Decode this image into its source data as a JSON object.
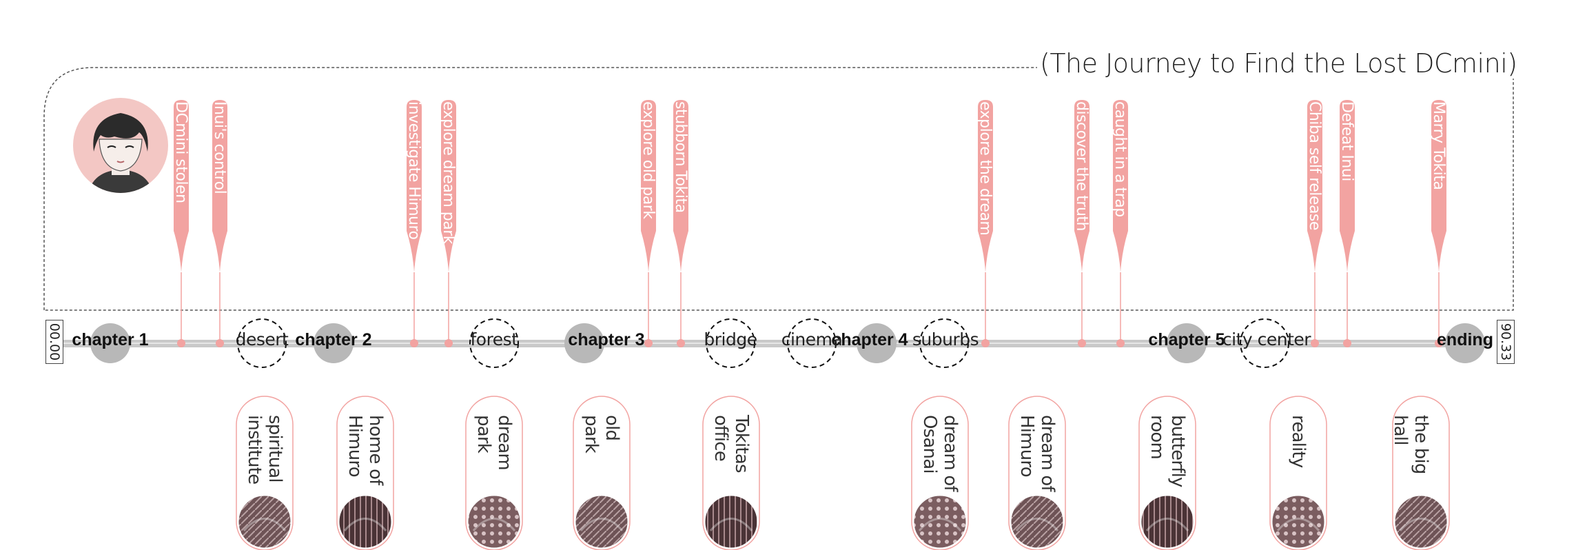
{
  "title": "(The Journey to Find the Lost DCmini)",
  "timeline": {
    "start_label": "00.00",
    "end_label": "90.33",
    "colors": {
      "accent": "#f2a3a1",
      "marker": "#b8b8b8",
      "rail": "#c9c9c9",
      "frame": "#555555"
    }
  },
  "chapters": [
    {
      "label": "chapter 1"
    },
    {
      "label": "chapter 2"
    },
    {
      "label": "chapter 3"
    },
    {
      "label": "chapter 4"
    },
    {
      "label": "chapter 5"
    },
    {
      "label": "ending"
    }
  ],
  "locations": [
    {
      "label": "desert"
    },
    {
      "label": "forest"
    },
    {
      "label": "bridge"
    },
    {
      "label": "cinema"
    },
    {
      "label": "suburbs"
    },
    {
      "label": "city center"
    }
  ],
  "events": [
    {
      "label": "DCmini stolen"
    },
    {
      "label": "Inui's control"
    },
    {
      "label": "investigate Himuro"
    },
    {
      "label": "explore dream park"
    },
    {
      "label": "explore old park"
    },
    {
      "label": "stubborn Tokita"
    },
    {
      "label": "explore the dream"
    },
    {
      "label": "discover the truth"
    },
    {
      "label": "caught in a trap"
    },
    {
      "label": "Chiba self release"
    },
    {
      "label": "Defeat Inui"
    },
    {
      "label": "Marry Tokita"
    }
  ],
  "places": [
    {
      "lines": [
        "spiritual",
        "institute"
      ],
      "icon": "spiritual-institute-thumbnail"
    },
    {
      "lines": [
        "home of",
        "Himuro"
      ],
      "icon": "himuro-home-thumbnail"
    },
    {
      "lines": [
        "dream",
        "park"
      ],
      "icon": "dream-park-thumbnail"
    },
    {
      "lines": [
        "old",
        "park"
      ],
      "icon": "old-park-thumbnail"
    },
    {
      "lines": [
        "Tokitas",
        "office"
      ],
      "icon": "tokita-office-thumbnail"
    },
    {
      "lines": [
        "dream of",
        "Osanai"
      ],
      "icon": "osanai-dream-thumbnail"
    },
    {
      "lines": [
        "dream of",
        "Himuro"
      ],
      "icon": "himuro-dream-thumbnail"
    },
    {
      "lines": [
        "butterfly",
        "room"
      ],
      "icon": "butterfly-room-thumbnail"
    },
    {
      "lines": [
        "reality"
      ],
      "icon": "reality-thumbnail"
    },
    {
      "lines": [
        "the big hall"
      ],
      "icon": "big-hall-thumbnail"
    }
  ]
}
